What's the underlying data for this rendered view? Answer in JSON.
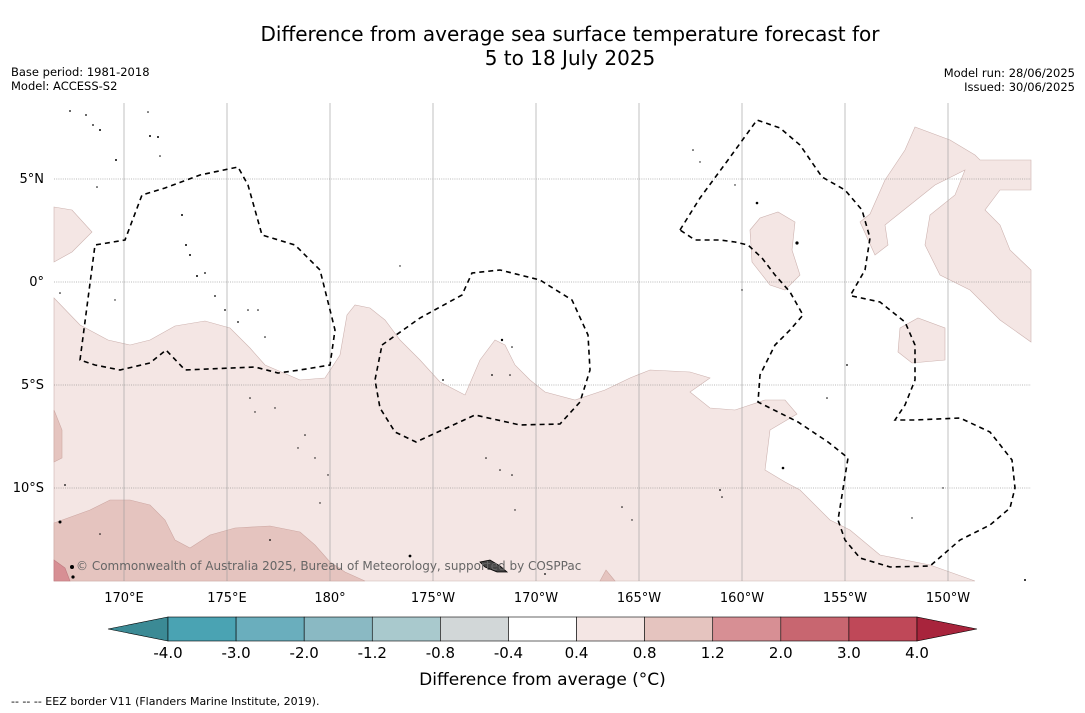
{
  "header": {
    "title_line1": "Difference from average sea surface temperature forecast for",
    "title_line2": "5 to 18 July 2025",
    "base_period": "Base period: 1981-2018",
    "model": "Model: ACCESS-S2",
    "model_run": "Model run: 28/06/2025",
    "issued": "Issued: 30/06/2025"
  },
  "map": {
    "lat_labels": [
      "5°N",
      "0°",
      "5°S",
      "10°S"
    ],
    "lon_labels": [
      "170°E",
      "175°E",
      "180°",
      "175°W",
      "170°W",
      "165°W",
      "160°W",
      "155°W",
      "150°W"
    ],
    "copyright": "© Commonwealth of Australia 2025, Bureau of Meteorology, supported by COSPPac"
  },
  "colorbar": {
    "ticks": [
      "-4.0",
      "-3.0",
      "-2.0",
      "-1.2",
      "-0.8",
      "-0.4",
      "0.4",
      "0.8",
      "1.2",
      "2.0",
      "3.0",
      "4.0"
    ],
    "colors": [
      "#3b8a95",
      "#4aa3b3",
      "#6aaebd",
      "#8ab9c3",
      "#a9c9cd",
      "#d2d7d8",
      "#ffffff",
      "#f4e6e4",
      "#e5c4bf",
      "#d78f94",
      "#c86670",
      "#bf4858",
      "#a8243c"
    ],
    "title": "Difference from average (°C)"
  },
  "legend": {
    "eez": "--  --  -- EEZ border V11 (Flanders Marine Institute, 2019)."
  }
}
